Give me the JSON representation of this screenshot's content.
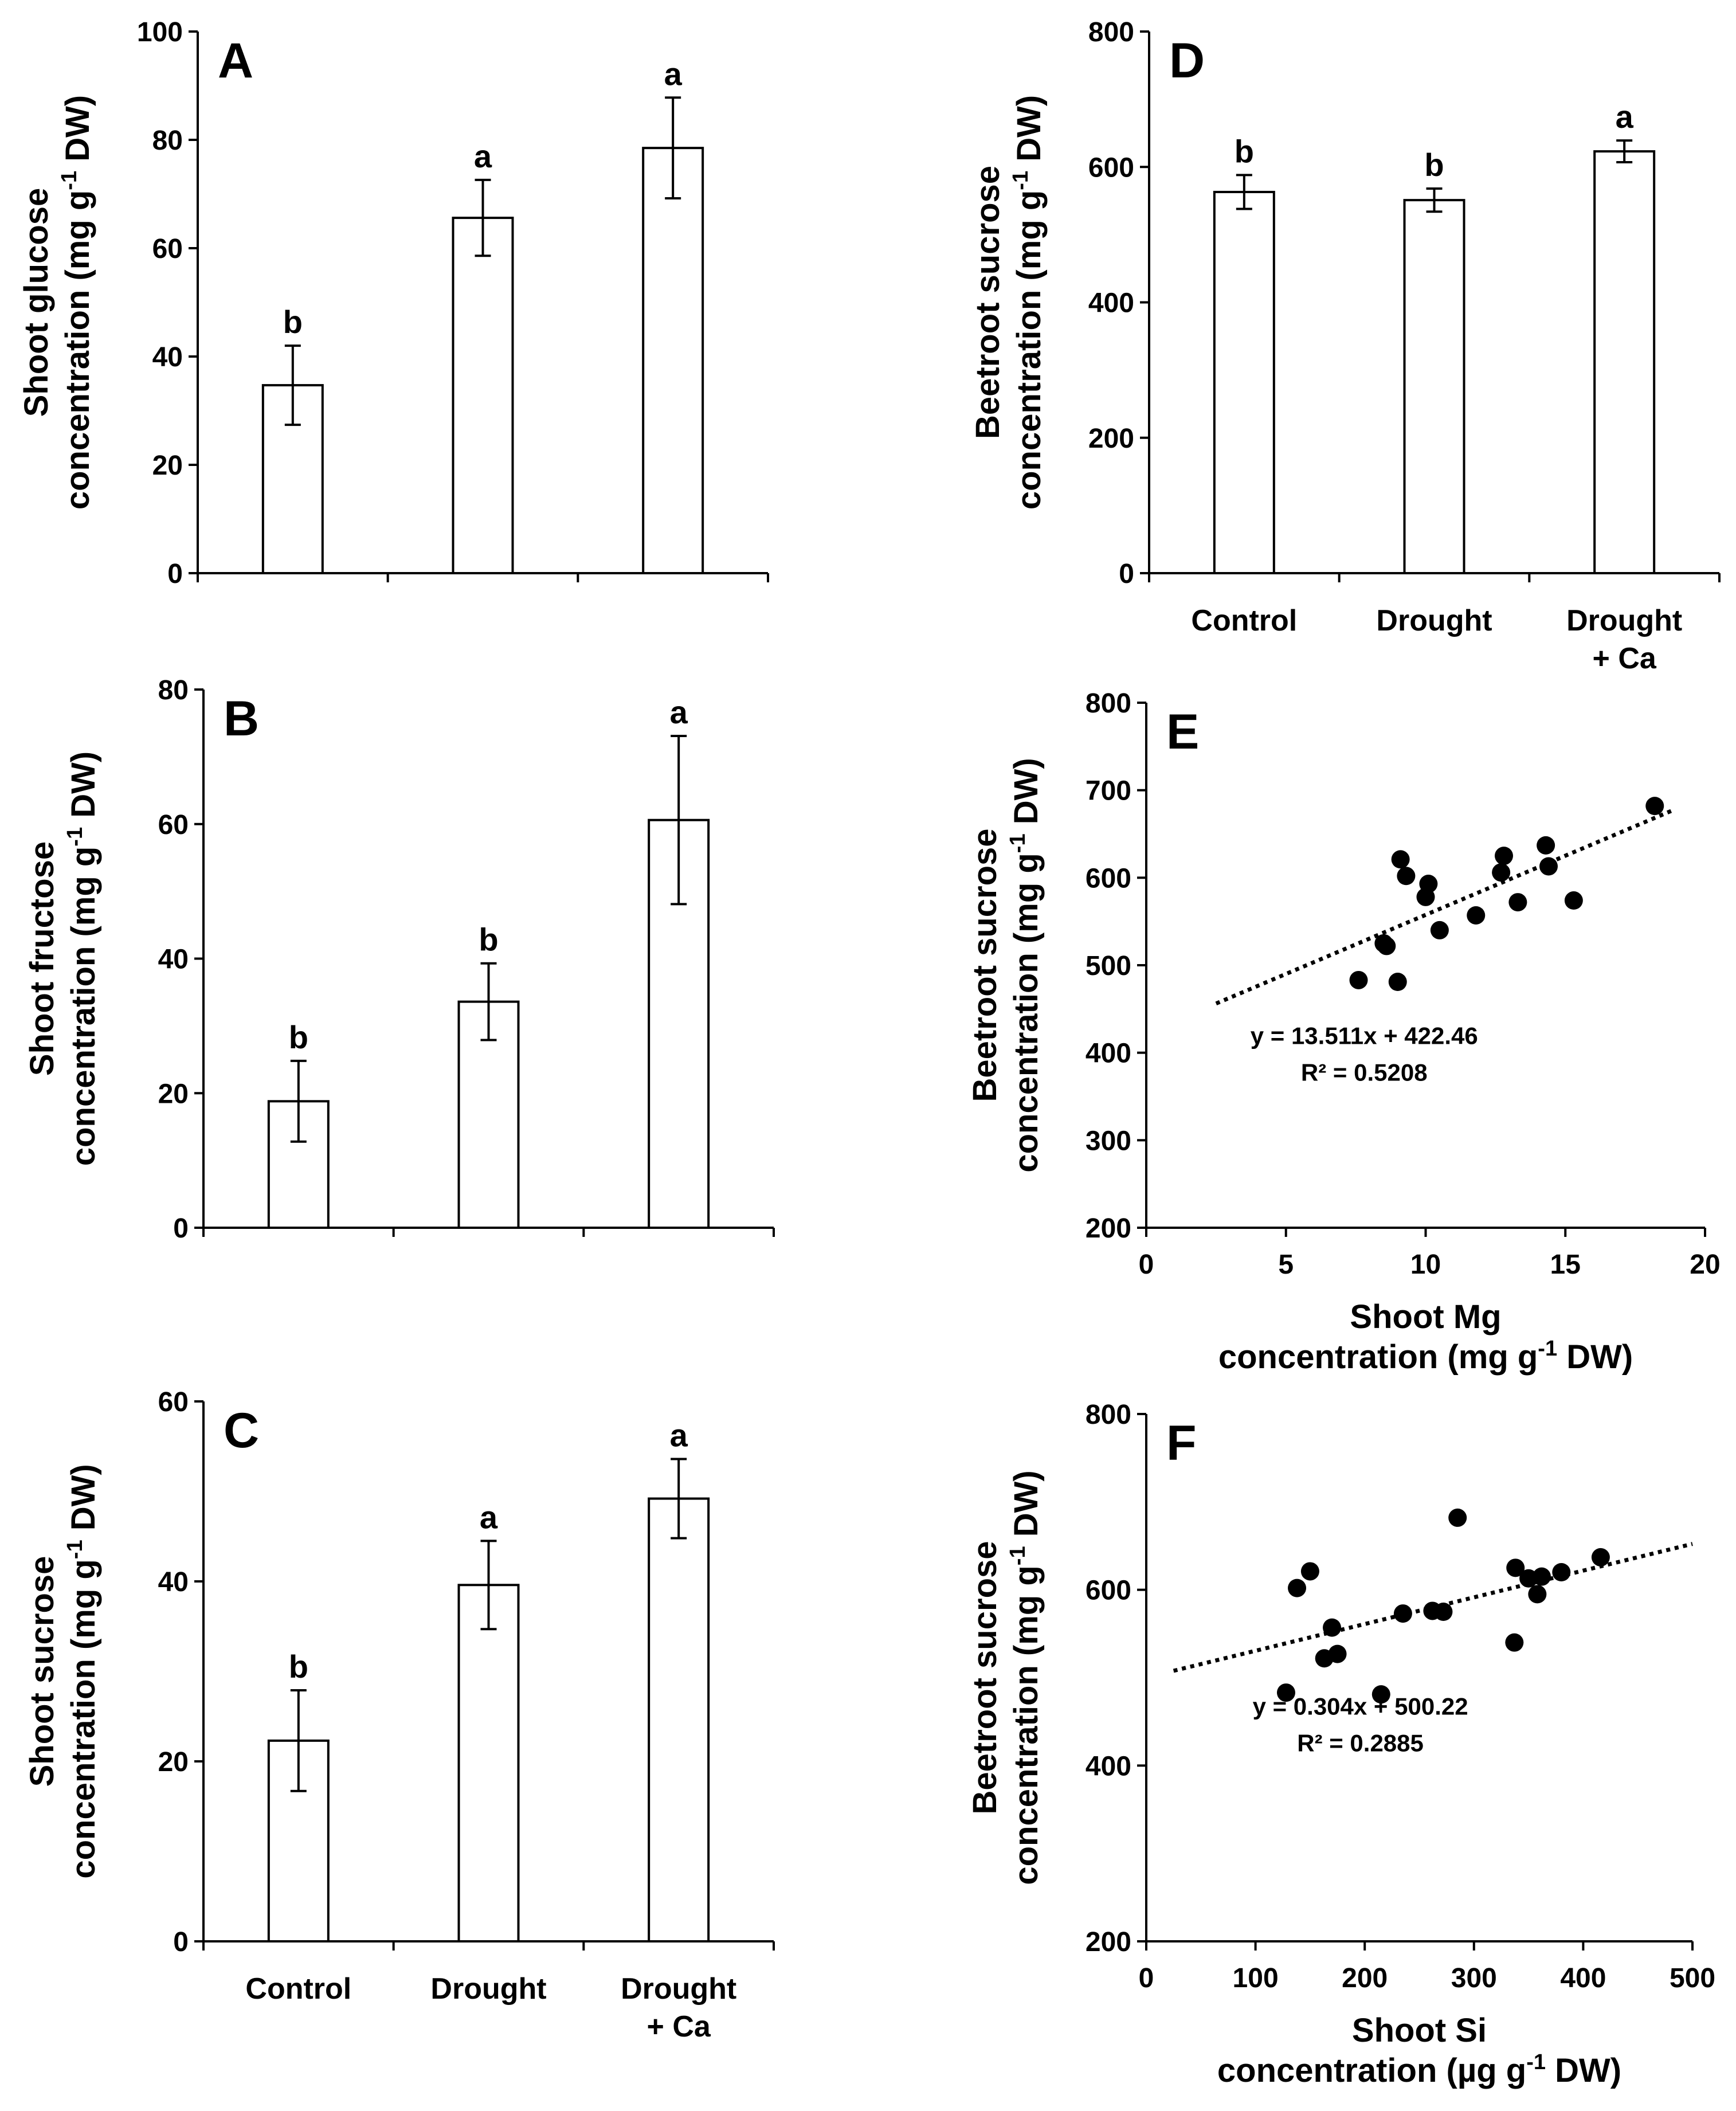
{
  "chart_data": [
    {
      "panel": "A",
      "type": "bar",
      "categories": [
        "Control",
        "Drought",
        "Drought + Ca"
      ],
      "category_lines": [],
      "values": [
        34.7,
        65.6,
        78.5
      ],
      "errors": [
        7.3,
        7.0,
        9.3
      ],
      "significance": [
        "b",
        "a",
        "a"
      ],
      "ylabel_lines": [
        "Shoot glucose",
        "concentration (mg g",
        "-1",
        " DW)"
      ],
      "ylim": [
        0,
        100
      ],
      "yticks": [
        0,
        20,
        40,
        60,
        80,
        100
      ]
    },
    {
      "panel": "B",
      "type": "bar",
      "categories": [
        "Control",
        "Drought",
        "Drought + Ca"
      ],
      "category_lines": [],
      "values": [
        18.8,
        33.6,
        60.6
      ],
      "errors": [
        6.0,
        5.7,
        12.5
      ],
      "significance": [
        "b",
        "b",
        "a"
      ],
      "ylabel_lines": [
        "Shoot fructose",
        "concentration (mg g",
        "-1",
        " DW)"
      ],
      "ylim": [
        0,
        80
      ],
      "yticks": [
        0,
        20,
        40,
        60,
        80
      ]
    },
    {
      "panel": "C",
      "type": "bar",
      "categories": [
        "Control",
        "Drought",
        "Drought + Ca"
      ],
      "category_lines": [
        [
          "Control"
        ],
        [
          "Drought"
        ],
        [
          "Drought",
          "+ Ca"
        ]
      ],
      "values": [
        22.3,
        39.6,
        49.2
      ],
      "errors": [
        5.6,
        4.9,
        4.4
      ],
      "significance": [
        "b",
        "a",
        "a"
      ],
      "ylabel_lines": [
        "Shoot sucrose",
        "concentration (mg g",
        "-1",
        " DW)"
      ],
      "ylim": [
        0,
        60
      ],
      "yticks": [
        0,
        20,
        40,
        60
      ]
    },
    {
      "panel": "D",
      "type": "bar",
      "categories": [
        "Control",
        "Drought",
        "Drought + Ca"
      ],
      "category_lines": [
        [
          "Control"
        ],
        [
          "Drought"
        ],
        [
          "Drought",
          "+ Ca"
        ]
      ],
      "values": [
        563,
        551,
        623
      ],
      "errors": [
        25,
        17,
        16
      ],
      "significance": [
        "b",
        "b",
        "a"
      ],
      "ylabel_lines": [
        "Beetroot sucrose",
        "concentration (mg g",
        "-1",
        " DW)"
      ],
      "ylim": [
        0,
        800
      ],
      "yticks": [
        0,
        200,
        400,
        600,
        800
      ]
    },
    {
      "panel": "E",
      "type": "scatter",
      "points": [
        [
          7.6,
          483
        ],
        [
          8.5,
          525
        ],
        [
          8.6,
          522
        ],
        [
          9.0,
          481
        ],
        [
          9.1,
          621
        ],
        [
          9.3,
          602
        ],
        [
          10.0,
          578
        ],
        [
          10.1,
          593
        ],
        [
          10.5,
          540
        ],
        [
          11.8,
          557
        ],
        [
          12.7,
          606
        ],
        [
          12.8,
          625
        ],
        [
          13.3,
          572
        ],
        [
          14.3,
          637
        ],
        [
          14.4,
          613
        ],
        [
          15.3,
          574
        ],
        [
          18.2,
          682
        ]
      ],
      "trendline": {
        "slope": 13.511,
        "intercept": 422.46,
        "x_range": [
          2.5,
          18.8
        ]
      },
      "equation": "y = 13.511x + 422.46",
      "r2": "R² = 0.5208",
      "xlabel_lines": [
        "Shoot Mg",
        "concentration (mg g",
        "-1",
        " DW)"
      ],
      "ylabel_lines": [
        "Beetroot sucrose",
        "concentration (mg g",
        "-1",
        " DW)"
      ],
      "xlim": [
        0,
        20
      ],
      "xticks": [
        0,
        5,
        10,
        15,
        20
      ],
      "ylim": [
        200,
        800
      ],
      "yticks": [
        200,
        300,
        400,
        500,
        600,
        700,
        800
      ]
    },
    {
      "panel": "F",
      "type": "scatter",
      "points": [
        [
          128,
          483
        ],
        [
          138,
          602
        ],
        [
          150,
          621
        ],
        [
          163,
          522
        ],
        [
          170,
          557
        ],
        [
          175,
          527
        ],
        [
          215,
          481
        ],
        [
          235,
          573
        ],
        [
          262,
          576
        ],
        [
          272,
          575
        ],
        [
          285,
          682
        ],
        [
          337,
          540
        ],
        [
          338,
          625
        ],
        [
          350,
          613
        ],
        [
          358,
          595
        ],
        [
          362,
          615
        ],
        [
          380,
          620
        ],
        [
          416,
          637
        ]
      ],
      "trendline": {
        "slope": 0.304,
        "intercept": 500.22,
        "x_range": [
          25,
          500
        ]
      },
      "equation": "y = 0.304x + 500.22",
      "r2": "R² = 0.2885",
      "xlabel_lines": [
        "Shoot Si",
        "concentration (µg g",
        "-1",
        " DW)"
      ],
      "ylabel_lines": [
        "Beetroot sucrose",
        "concentration (mg g",
        "-1",
        " DW)"
      ],
      "xlim": [
        0,
        500
      ],
      "xticks": [
        0,
        100,
        200,
        300,
        400,
        500
      ],
      "ylim": [
        200,
        800
      ],
      "yticks": [
        200,
        400,
        600,
        800
      ]
    }
  ]
}
